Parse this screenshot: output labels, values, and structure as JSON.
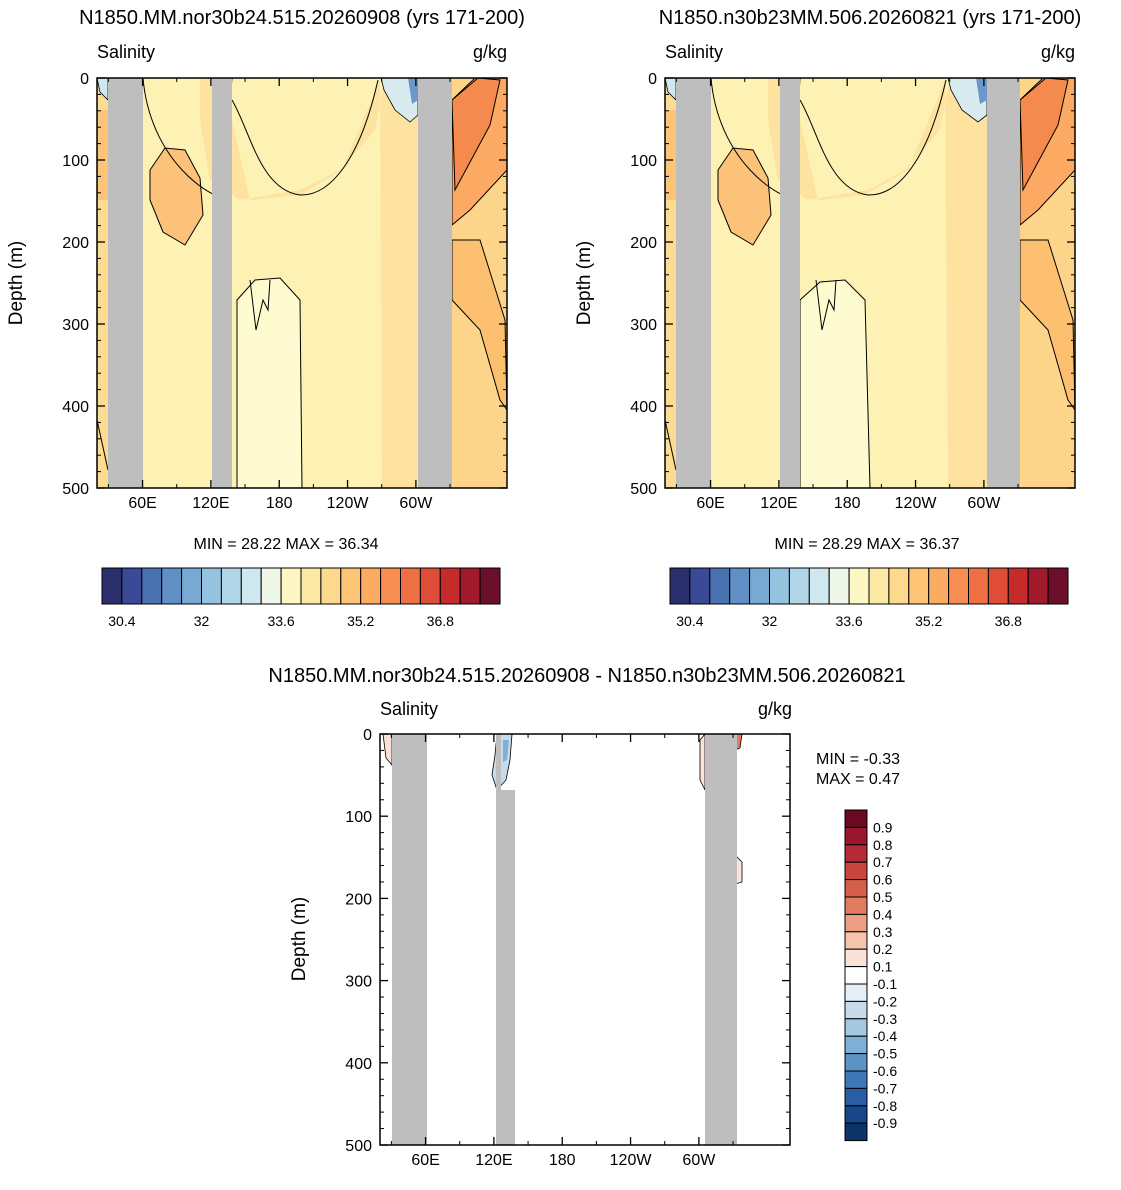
{
  "chart_data": [
    {
      "type": "contour",
      "title": "N1850.MM.nor30b24.515.20260908 (yrs 171-200)",
      "left_label": "Salinity",
      "right_label": "g/kg",
      "ylabel": "Depth (m)",
      "ylim": [
        500,
        0
      ],
      "yticks": [
        "0",
        "100",
        "200",
        "300",
        "400",
        "500"
      ],
      "xticks": [
        "60E",
        "120E",
        "180",
        "120W",
        "60W"
      ],
      "stats": "MIN =  28.22  MAX =  36.34",
      "colorbar": {
        "orientation": "horizontal",
        "colors": [
          "#2b2f6b",
          "#3a4a96",
          "#4a72b0",
          "#5f8fc4",
          "#78a9d2",
          "#95c2df",
          "#b1d6e8",
          "#cfe8f0",
          "#eef7e8",
          "#fdf7c6",
          "#fde9a6",
          "#fdd98b",
          "#fdc476",
          "#fcab63",
          "#f78f52",
          "#ee6f44",
          "#df4c37",
          "#c52b2b",
          "#a01a2c",
          "#6c0f2a"
        ],
        "labels": [
          "30.4",
          "32",
          "33.6",
          "35.2",
          "36.8"
        ]
      }
    },
    {
      "type": "contour",
      "title": "N1850.n30b23MM.506.20260821 (yrs 171-200)",
      "left_label": "Salinity",
      "right_label": "g/kg",
      "ylabel": "Depth (m)",
      "ylim": [
        500,
        0
      ],
      "yticks": [
        "0",
        "100",
        "200",
        "300",
        "400",
        "500"
      ],
      "xticks": [
        "60E",
        "120E",
        "180",
        "120W",
        "60W"
      ],
      "stats": "MIN =  28.29  MAX =  36.37",
      "colorbar": {
        "orientation": "horizontal",
        "colors": [
          "#2b2f6b",
          "#3a4a96",
          "#4a72b0",
          "#5f8fc4",
          "#78a9d2",
          "#95c2df",
          "#b1d6e8",
          "#cfe8f0",
          "#eef7e8",
          "#fdf7c6",
          "#fde9a6",
          "#fdd98b",
          "#fdc476",
          "#fcab63",
          "#f78f52",
          "#ee6f44",
          "#df4c37",
          "#c52b2b",
          "#a01a2c",
          "#6c0f2a"
        ],
        "labels": [
          "30.4",
          "32",
          "33.6",
          "35.2",
          "36.8"
        ]
      }
    },
    {
      "type": "contour",
      "title": "N1850.MM.nor30b24.515.20260908 - N1850.n30b23MM.506.20260821",
      "left_label": "Salinity",
      "right_label": "g/kg",
      "ylabel": "Depth (m)",
      "ylim": [
        500,
        0
      ],
      "yticks": [
        "0",
        "100",
        "200",
        "300",
        "400",
        "500"
      ],
      "xticks": [
        "60E",
        "120E",
        "180",
        "120W",
        "60W"
      ],
      "min_text": "MIN =  -0.33",
      "max_text": "MAX =   0.47",
      "colorbar": {
        "orientation": "vertical",
        "labels": [
          "0.9",
          "0.8",
          "0.7",
          "0.6",
          "0.5",
          "0.4",
          "0.3",
          "0.2",
          "0.1",
          "-0.1",
          "-0.2",
          "-0.3",
          "-0.4",
          "-0.5",
          "-0.6",
          "-0.7",
          "-0.8",
          "-0.9"
        ],
        "colors": [
          "#6a0a22",
          "#9c1530",
          "#b52b35",
          "#c9453f",
          "#d65f4b",
          "#e27c5f",
          "#ee9e83",
          "#f6c3ac",
          "#fbe2d6",
          "#ffffff",
          "#e4eef6",
          "#c6dcec",
          "#a4c7e2",
          "#80b0d6",
          "#5b93c6",
          "#3e78b6",
          "#295ea4",
          "#184787",
          "#0d3369"
        ]
      }
    }
  ]
}
